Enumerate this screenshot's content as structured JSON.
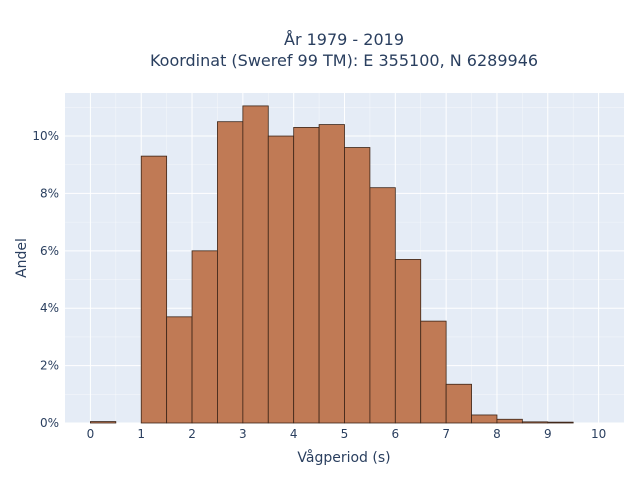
{
  "chart_data": {
    "type": "bar",
    "title_lines": [
      "År 1979 - 2019",
      "Koordinat (Sweref 99 TM): E 355100, N 6289946"
    ],
    "xlabel": "Vågperiod (s)",
    "ylabel": "Andel",
    "bin_width": 0.5,
    "x": [
      0,
      0.5,
      1,
      1.5,
      2,
      2.5,
      3,
      3.5,
      4,
      4.5,
      5,
      5.5,
      6,
      6.5,
      7,
      7.5,
      8,
      8.5,
      9,
      9.5
    ],
    "values": [
      0.05,
      0.0,
      9.3,
      3.7,
      6.0,
      10.5,
      11.05,
      10.0,
      10.3,
      10.4,
      9.6,
      8.2,
      5.7,
      3.55,
      1.35,
      0.28,
      0.13,
      0.04,
      0.03,
      0.0
    ],
    "value_unit": "%",
    "xlim": [
      -0.5,
      10.5
    ],
    "ylim": [
      0,
      11.5
    ],
    "xticks": [
      "0",
      "1",
      "2",
      "3",
      "4",
      "5",
      "6",
      "7",
      "8",
      "9",
      "10"
    ],
    "yticks": [
      "0%",
      "2%",
      "4%",
      "6%",
      "8%",
      "10%"
    ],
    "grid": true,
    "colors": {
      "bar": "#c07a55",
      "bar_edge": "#3b2417",
      "plot_bg": "#e5ecf6",
      "grid": "#ffffff"
    }
  }
}
